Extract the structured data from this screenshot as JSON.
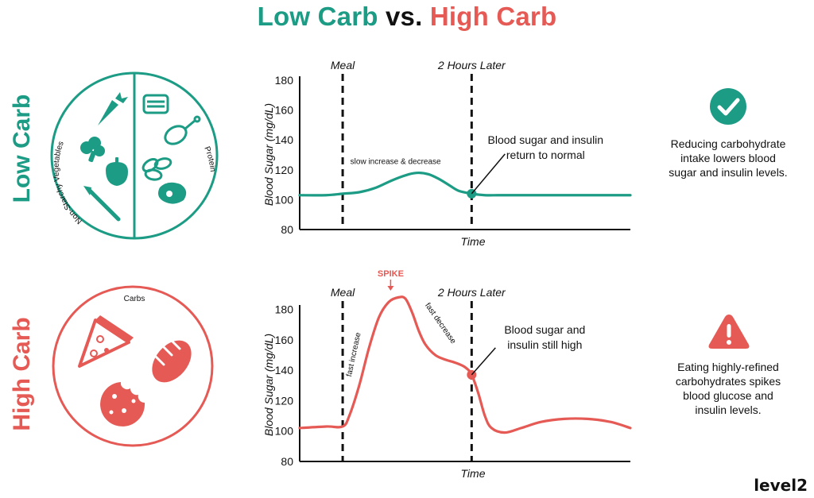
{
  "title": {
    "low": "Low Carb",
    "vs": "vs.",
    "high": "High Carb"
  },
  "rows": {
    "low": {
      "label": "Low Carb",
      "plate_labels": {
        "left": "Non-Starchy Vegetables",
        "right": "Protein"
      },
      "note": [
        "Reducing carbohydrate",
        "intake lowers blood",
        "sugar and insulin levels."
      ],
      "badge_icon": "checkmark-icon",
      "color": "#1c9b85"
    },
    "high": {
      "label": "High Carb",
      "plate_labels": {
        "top": "Carbs"
      },
      "note": [
        "Eating highly-refined",
        "carbohydrates spikes",
        "blood glucose and",
        "insulin levels."
      ],
      "badge_icon": "warning-icon",
      "color": "#e55a55"
    }
  },
  "logo": "level2",
  "chart_data": [
    {
      "type": "line",
      "title": "",
      "xlabel": "Time",
      "ylabel": "Blood Sugar (mg/dL)",
      "ylim": [
        80,
        180
      ],
      "yticks": [
        80,
        100,
        120,
        140,
        160,
        180
      ],
      "xlim": [
        0,
        100
      ],
      "grid": false,
      "series": [
        {
          "color": "#1c9b85",
          "x": [
            0,
            8,
            13,
            18,
            23,
            28,
            33,
            36,
            39,
            42,
            45,
            48,
            52,
            56,
            60,
            65,
            70,
            75,
            80,
            85,
            90,
            95,
            100
          ],
          "y": [
            103,
            103,
            104,
            105,
            108,
            113,
            117,
            118,
            117,
            114,
            110,
            106,
            104,
            103,
            103,
            103,
            103,
            103,
            103,
            103,
            103,
            103,
            103
          ]
        }
      ],
      "vlines": [
        {
          "x": 13,
          "label": "Meal"
        },
        {
          "x": 52,
          "label": "2 Hours Later"
        }
      ],
      "marker": {
        "x": 52,
        "y": 104
      },
      "annotations": [
        {
          "text": "slow increase & decrease",
          "x": 32,
          "y": 124
        },
        {
          "text": [
            "Blood sugar and insulin",
            "return to normal"
          ]
        }
      ]
    },
    {
      "type": "line",
      "title": "",
      "xlabel": "Time",
      "ylabel": "Blood Sugar (mg/dL)",
      "ylim": [
        80,
        185
      ],
      "yticks": [
        80,
        100,
        120,
        140,
        160,
        180
      ],
      "xlim": [
        0,
        100
      ],
      "grid": false,
      "series": [
        {
          "color": "#e55a55",
          "x": [
            0,
            8,
            13,
            15,
            18,
            21,
            24,
            27,
            30,
            32,
            34,
            36,
            38,
            41,
            44,
            47,
            50,
            52,
            54,
            56,
            58,
            62,
            67,
            73,
            80,
            87,
            94,
            100
          ],
          "y": [
            102,
            103,
            103,
            110,
            130,
            155,
            175,
            185,
            188,
            187,
            178,
            166,
            157,
            150,
            147,
            145,
            142,
            137,
            125,
            110,
            102,
            99,
            102,
            106,
            108,
            108,
            106,
            102
          ]
        }
      ],
      "vlines": [
        {
          "x": 13,
          "label": "Meal"
        },
        {
          "x": 52,
          "label": "2 Hours Later"
        }
      ],
      "marker": {
        "x": 52,
        "y": 137
      },
      "annotations": [
        {
          "text": "SPIKE"
        },
        {
          "text": "fast increase"
        },
        {
          "text": "fast decrease"
        },
        {
          "text": [
            "Blood sugar and",
            "insulin still high"
          ]
        }
      ]
    }
  ]
}
